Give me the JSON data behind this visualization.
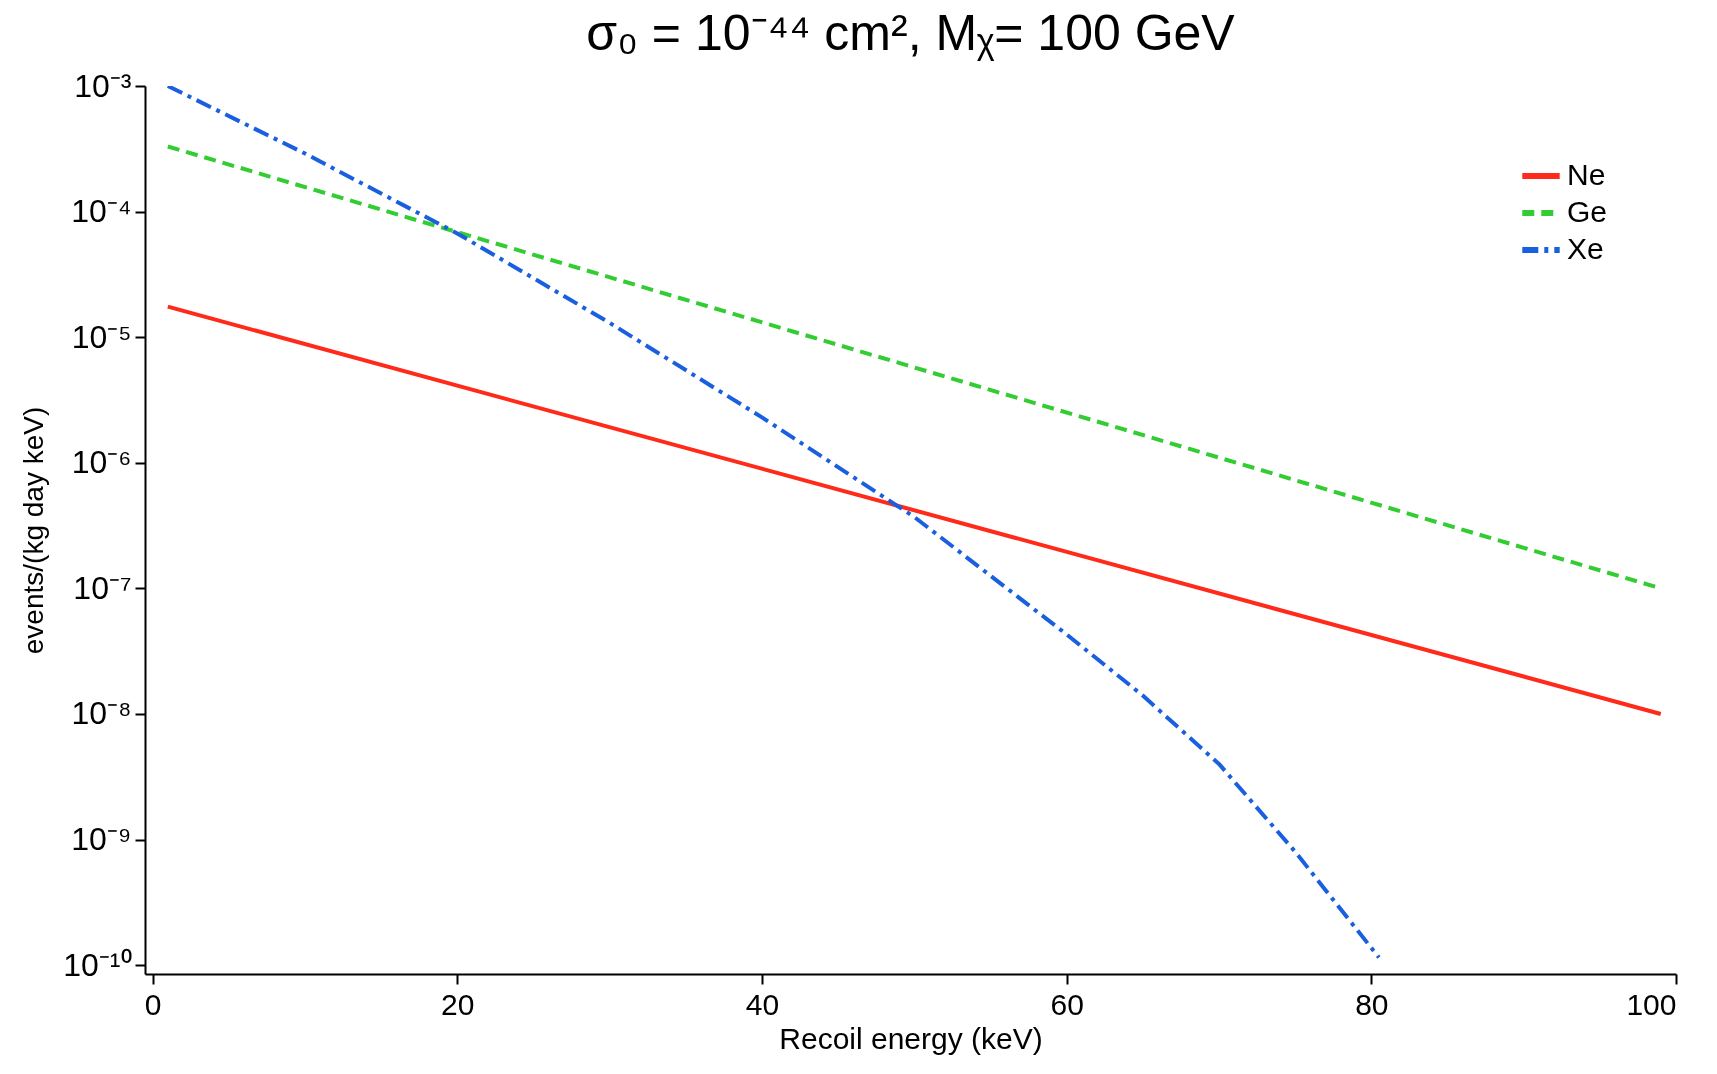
{
  "chart_data": {
    "type": "line",
    "title": "σ₀ = 10⁻⁴⁴ cm², Mᵪ= 100 GeV",
    "xlabel": "Recoil energy (keV)",
    "ylabel": "events/(kg day keV)",
    "series": [
      {
        "name": "Ne",
        "color": "#ff2a1a",
        "line_style": "solid",
        "x": [
          1,
          99
        ],
        "values": [
          1.75e-05,
          1e-08
        ]
      },
      {
        "name": "Ge",
        "color": "#33cc33",
        "line_style": "dashed",
        "x": [
          1,
          99
        ],
        "values": [
          0.00033,
          1e-07
        ]
      },
      {
        "name": "Xe",
        "color": "#1a5fe0",
        "line_style": "dashdot",
        "x": [
          1,
          10,
          20,
          30,
          40,
          50,
          60,
          65,
          70,
          75,
          80.5
        ],
        "values": [
          0.001,
          0.00029,
          6.7e-05,
          1.3e-05,
          2.3e-06,
          3.7e-07,
          4.3e-08,
          1.4e-08,
          4e-09,
          8e-10,
          1.15e-10
        ]
      }
    ],
    "xlim": [
      -0.5,
      100
    ],
    "xticks": [
      0,
      20,
      40,
      60,
      80,
      100
    ],
    "ylim": [
      8.5e-11,
      0.001
    ],
    "yticks": [
      {
        "value": 0.001,
        "label": "10⁻³"
      },
      {
        "value": 0.0001,
        "label": "10⁻⁴"
      },
      {
        "value": 1e-05,
        "label": "10⁻⁵"
      },
      {
        "value": 1e-06,
        "label": "10⁻⁶"
      },
      {
        "value": 1e-07,
        "label": "10⁻⁷"
      },
      {
        "value": 1e-08,
        "label": "10⁻⁸"
      },
      {
        "value": 1e-09,
        "label": "10⁻⁹"
      },
      {
        "value": 1e-10,
        "label": "10⁻¹⁰"
      }
    ],
    "log": "y",
    "grid": false,
    "legend": "top right",
    "marker": "none"
  }
}
